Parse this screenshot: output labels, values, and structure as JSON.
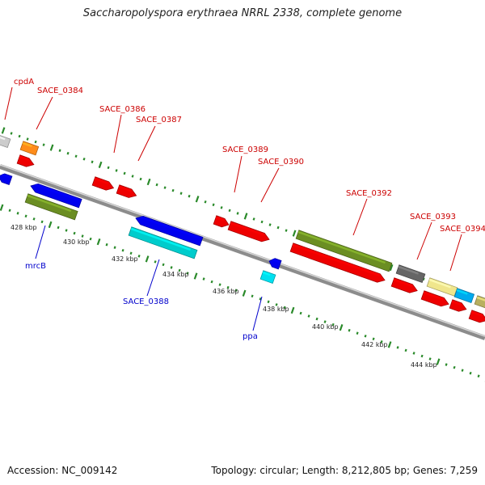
{
  "title": "Saccharopolyspora erythraea NRRL 2338, complete genome",
  "footer": {
    "accession": "Accession: NC_009142",
    "summary": "Topology: circular; Length: 8,212,805 bp; Genes: 7,259"
  },
  "colors": {
    "backbone": "#8c8c8c",
    "tick": "#2a8a2a",
    "label_red": "#cc0000",
    "label_blue": "#0000cc"
  },
  "scale_labels": [
    "428 kbp",
    "430 kbp",
    "432 kbp",
    "434 kbp",
    "436 kbp",
    "438 kbp",
    "440 kbp",
    "442 kbp",
    "444 kbp"
  ],
  "gene_labels": [
    {
      "text": "cpdA",
      "color": "red"
    },
    {
      "text": "SACE_0384",
      "color": "red"
    },
    {
      "text": "SACE_0386",
      "color": "red"
    },
    {
      "text": "SACE_0387",
      "color": "red"
    },
    {
      "text": "SACE_0389",
      "color": "red"
    },
    {
      "text": "SACE_0390",
      "color": "red"
    },
    {
      "text": "SACE_0392",
      "color": "red"
    },
    {
      "text": "SACE_0393",
      "color": "red"
    },
    {
      "text": "SACE_0394",
      "color": "red"
    },
    {
      "text": "mrcB",
      "color": "blue"
    },
    {
      "text": "SACE_0388",
      "color": "blue"
    },
    {
      "text": "ppa",
      "color": "blue"
    }
  ]
}
